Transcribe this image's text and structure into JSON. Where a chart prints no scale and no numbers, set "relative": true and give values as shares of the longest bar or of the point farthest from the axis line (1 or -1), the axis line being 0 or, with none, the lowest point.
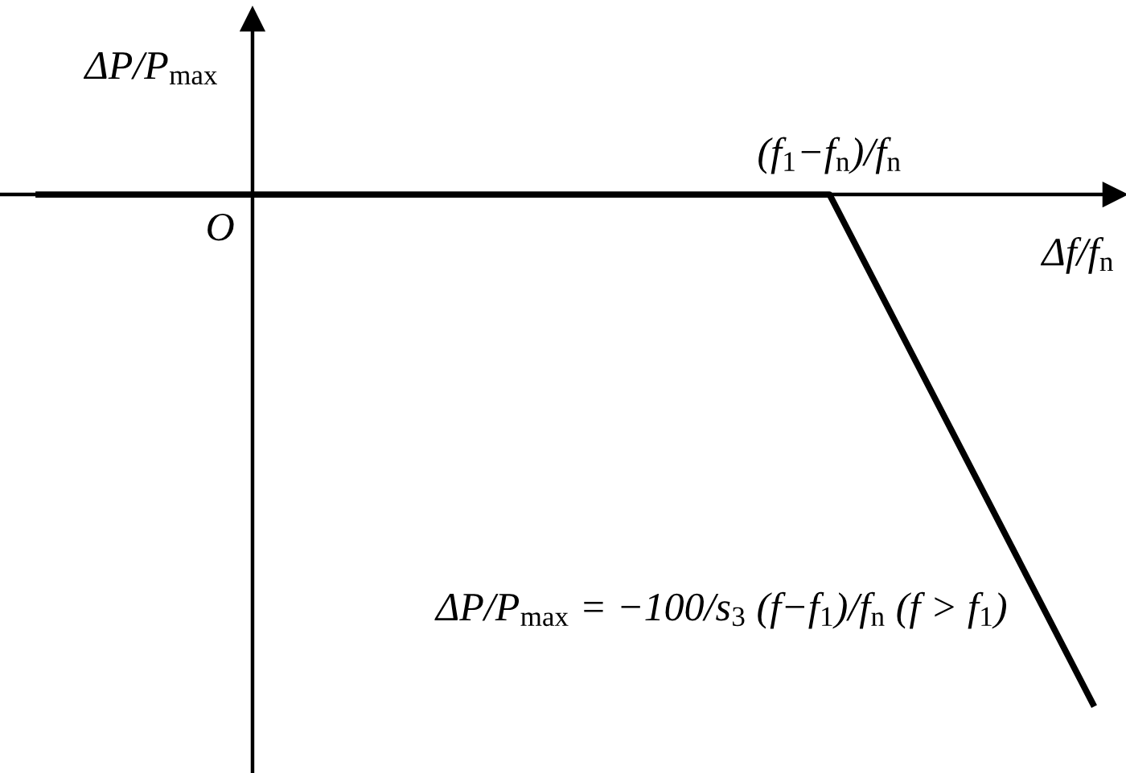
{
  "chart_data": {
    "type": "line",
    "relative": true,
    "categories": [
      null,
      null,
      null,
      null,
      null
    ],
    "series": [
      {
        "color": "#000000",
        "values": [
          0,
          0,
          0,
          0,
          -1
        ]
      }
    ],
    "xlabel": "Δf/f$_{n}$",
    "ylabel": "ΔP/P$_{max}$",
    "annotations": [
      "O",
      {
        "text": "(f$_{1}$−f$_{n}$)/f$_{n}$",
        "y": 0
      },
      "ΔP/P$_{max}$ = −100/s$_{3}$ (f−f$_{1}$)/f$_{n}$ (f > f$_{1}$)"
    ],
    "line_style": "solid"
  }
}
